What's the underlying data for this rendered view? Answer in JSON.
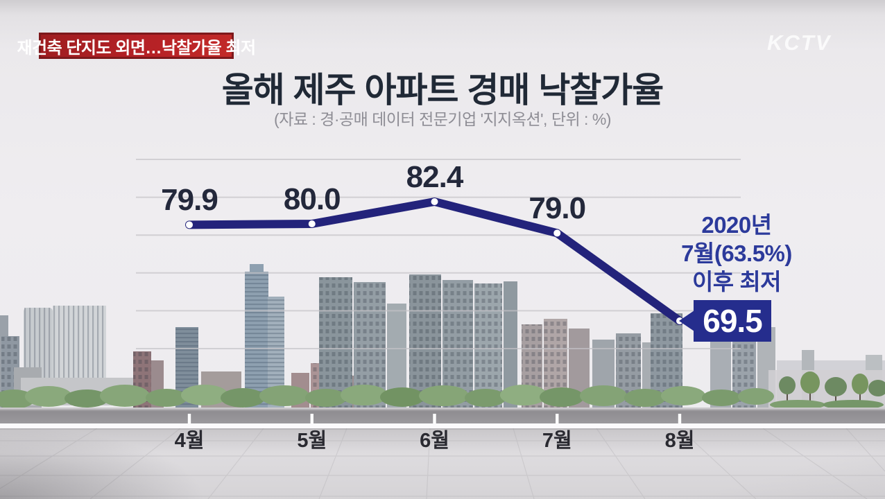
{
  "meta": {
    "station_logo": "KCTV",
    "breaking_badge": "재건축 단지도 외면…낙찰가율 최저"
  },
  "header": {
    "title": "올해 제주 아파트 경매 낙찰가율",
    "subtitle": "(자료 : 경·공매 데이터 전문기업 '지지옥션', 단위 : %)"
  },
  "chart_data": {
    "type": "line",
    "title": "올해 제주 아파트 경매 낙찰가율",
    "source": "경·공매 데이터 전문기업 '지지옥션'",
    "unit": "%",
    "categories": [
      "4월",
      "5월",
      "6월",
      "7월",
      "8월"
    ],
    "values": [
      79.9,
      80.0,
      82.4,
      79.0,
      69.5
    ],
    "value_labels": [
      "79.9",
      "80.0",
      "82.4",
      "79.0",
      "69.5"
    ],
    "highlight": {
      "category": "8월",
      "value": 69.5,
      "label": "69.5"
    },
    "annotation": {
      "lines": [
        "2020년",
        "7월(63.5%)",
        "이후 최저"
      ]
    },
    "grid": true,
    "legend_position": "none",
    "ylim_visual": [
      63,
      88
    ],
    "colors": {
      "line": "#23237b",
      "point": "#ffffff",
      "value_label": "#23283b",
      "annotation": "#2c3a9b",
      "highlight_box": "#252d8d",
      "highlight_text": "#ffffff",
      "axis_line": "#ffffff",
      "category_label": "#2a2a31",
      "gridline": "#c5c3c8",
      "badge_red": "#b52126"
    }
  }
}
